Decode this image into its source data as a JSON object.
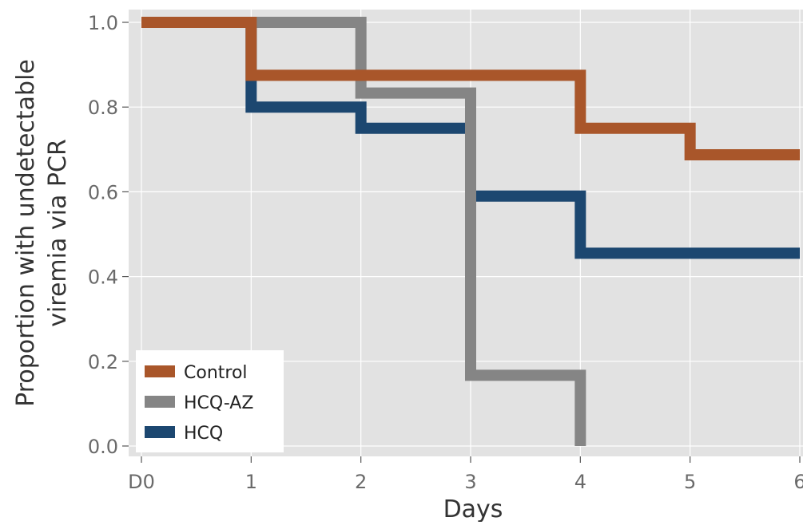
{
  "chart_data": {
    "type": "line",
    "step": true,
    "xlabel": "Days",
    "ylabel": [
      "Proportion with undetectable",
      "viremia via PCR"
    ],
    "xlim": [
      0,
      6
    ],
    "ylim": [
      0,
      1
    ],
    "x_ticks": [
      {
        "value": 0,
        "label": "D0"
      },
      {
        "value": 1,
        "label": "1"
      },
      {
        "value": 2,
        "label": "2"
      },
      {
        "value": 3,
        "label": "3"
      },
      {
        "value": 4,
        "label": "4"
      },
      {
        "value": 5,
        "label": "5"
      },
      {
        "value": 6,
        "label": "6"
      }
    ],
    "y_ticks": [
      {
        "value": 0,
        "label": "0.0"
      },
      {
        "value": 0.2,
        "label": "0.2"
      },
      {
        "value": 0.4,
        "label": "0.4"
      },
      {
        "value": 0.6,
        "label": "0.6"
      },
      {
        "value": 0.8,
        "label": "0.8"
      },
      {
        "value": 1.0,
        "label": "1.0"
      }
    ],
    "grid": true,
    "legend_position": "bottom-left",
    "series": [
      {
        "name": "Control",
        "color": "#a9562a",
        "x": [
          0,
          1,
          4,
          5,
          6
        ],
        "y": [
          1.0,
          0.875,
          0.75,
          0.6875,
          0.6875
        ]
      },
      {
        "name": "HCQ-AZ",
        "color": "#858585",
        "x": [
          0,
          2,
          3,
          4
        ],
        "y": [
          1.0,
          0.833,
          0.167,
          0.0
        ]
      },
      {
        "name": "HCQ",
        "color": "#1c4770",
        "x": [
          0,
          1,
          2,
          3,
          4,
          6
        ],
        "y": [
          1.0,
          0.8,
          0.75,
          0.59,
          0.455,
          0.455
        ]
      }
    ],
    "draw_order": [
      "HCQ",
      "HCQ-AZ",
      "Control"
    ]
  }
}
